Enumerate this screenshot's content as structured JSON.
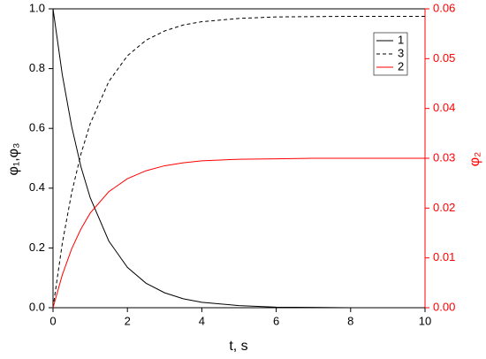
{
  "chart_data": {
    "type": "line",
    "x_label": "t, s",
    "y_label": "φ₁,φ₃",
    "y2_label": "φ₂",
    "x": [
      0,
      0.25,
      0.5,
      0.75,
      1,
      1.5,
      2,
      2.5,
      3,
      3.5,
      4,
      5,
      6,
      7,
      8,
      9,
      10
    ],
    "series": [
      {
        "name": "1",
        "color": "#000000",
        "line_style": "solid",
        "values": [
          1,
          0.779,
          0.607,
          0.472,
          0.368,
          0.223,
          0.135,
          0.082,
          0.05,
          0.03,
          0.018,
          0.007,
          0.002,
          0.001,
          0,
          0,
          0
        ]
      },
      {
        "name": "3",
        "color": "#000000",
        "line_style": "dashed",
        "values": [
          0,
          0.216,
          0.384,
          0.514,
          0.616,
          0.757,
          0.843,
          0.895,
          0.926,
          0.946,
          0.957,
          0.968,
          0.973,
          0.974,
          0.975,
          0.975,
          0.975
        ]
      },
      {
        "name": "2",
        "color": "#ff0000",
        "line_style": "solid",
        "axis": "y2",
        "values": [
          0,
          0.0066,
          0.0118,
          0.0158,
          0.019,
          0.0233,
          0.0259,
          0.0275,
          0.0285,
          0.0291,
          0.0295,
          0.0298,
          0.0299,
          0.03,
          0.03,
          0.03,
          0.03
        ]
      }
    ],
    "xlim": [
      0,
      10
    ],
    "xticks": [
      0,
      2,
      4,
      6,
      8,
      10
    ],
    "ylim": [
      0,
      1
    ],
    "yticks": [
      {
        "value": 0,
        "label": "0.0"
      },
      {
        "value": 0.2,
        "label": "0.2"
      },
      {
        "value": 0.4,
        "label": "0.4"
      },
      {
        "value": 0.6,
        "label": "0.6"
      },
      {
        "value": 0.8,
        "label": "0.8"
      },
      {
        "value": 1,
        "label": "1.0"
      }
    ],
    "y2lim": [
      0,
      0.06
    ],
    "y2ticks": [
      {
        "value": 0,
        "label": "0.00"
      },
      {
        "value": 0.01,
        "label": "0.01"
      },
      {
        "value": 0.02,
        "label": "0.02"
      },
      {
        "value": 0.03,
        "label": "0.03"
      },
      {
        "value": 0.04,
        "label": "0.04"
      },
      {
        "value": 0.05,
        "label": "0.05"
      },
      {
        "value": 0.06,
        "label": "0.06"
      }
    ],
    "y2_color": "#ff0000",
    "legend": "upper right",
    "grid": false
  }
}
